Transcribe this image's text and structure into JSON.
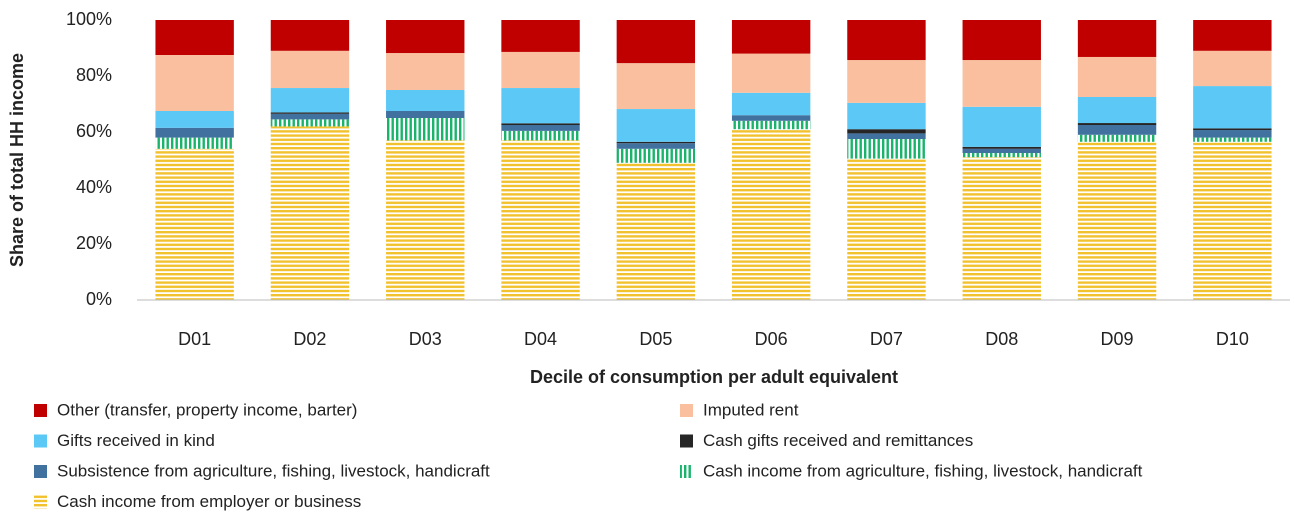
{
  "chart_data": {
    "type": "stacked_bar",
    "ylabel": "Share of total HH income",
    "xlabel": "Decile of consumption per adult equivalent",
    "categories": [
      "D01",
      "D02",
      "D03",
      "D04",
      "D05",
      "D06",
      "D07",
      "D08",
      "D09",
      "D10"
    ],
    "ylim": [
      0,
      100
    ],
    "yticks": [
      {
        "value": 0,
        "label": "0%"
      },
      {
        "value": 20,
        "label": "20%"
      },
      {
        "value": 40,
        "label": "40%"
      },
      {
        "value": 60,
        "label": "60%"
      },
      {
        "value": 80,
        "label": "80%"
      },
      {
        "value": 100,
        "label": "100%"
      }
    ],
    "grid": false,
    "legend": "bottom",
    "series": [
      {
        "name": "Cash income from employer or business",
        "color": "#f2c12e",
        "pattern": "horizontal-stripes",
        "values": [
          54,
          62,
          57,
          57,
          49,
          61,
          50.5,
          51,
          56.5,
          56.5
        ]
      },
      {
        "name": "Cash income from agriculture, fishing, livestock, handicraft",
        "color": "#19b36b",
        "pattern": "vertical-stripes",
        "values": [
          4,
          2.5,
          8,
          3.4,
          5,
          3,
          7,
          1.5,
          2.5,
          1.5
        ]
      },
      {
        "name": "Subsistence from agriculture, fishing, livestock, handicraft",
        "color": "#41729f",
        "values": [
          3.5,
          2,
          2.5,
          2.1,
          2,
          2,
          2,
          1.5,
          3.5,
          2.7
        ]
      },
      {
        "name": "Cash gifts received and remittances",
        "color": "#262626",
        "values": [
          0,
          0.5,
          0,
          0.6,
          0.5,
          0,
          1.5,
          0.7,
          0.7,
          0.6
        ]
      },
      {
        "name": "Gifts received in kind",
        "color": "#5bc8f5",
        "values": [
          6,
          8.7,
          7.5,
          12.6,
          11.7,
          8,
          9.4,
          14.3,
          9.3,
          15.1
        ]
      },
      {
        "name": "Imputed rent",
        "color": "#f9bf9f",
        "values": [
          20,
          13.3,
          13.2,
          12.9,
          16.4,
          14,
          15.3,
          16.7,
          14.3,
          12.6
        ]
      },
      {
        "name": "Other (transfer, property income, barter)",
        "color": "#c00000",
        "values": [
          12.5,
          11,
          11.8,
          11.4,
          15.4,
          12,
          14.3,
          14.3,
          13.2,
          11
        ]
      }
    ]
  }
}
